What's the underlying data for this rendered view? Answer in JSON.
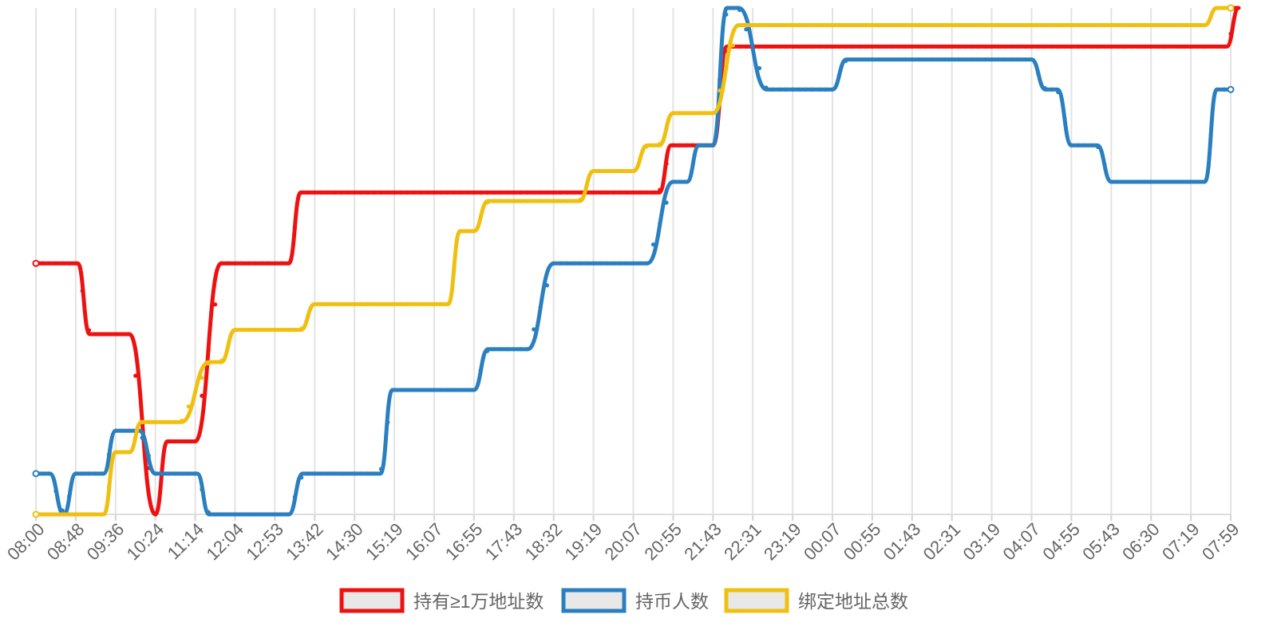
{
  "chart_data": {
    "type": "line",
    "title": "",
    "xlabel": "",
    "ylabel": "",
    "grid": "vertical",
    "legend_position": "bottom",
    "categories": [
      "08:00",
      "08:48",
      "09:36",
      "10:24",
      "11:14",
      "12:04",
      "12:53",
      "13:42",
      "14:30",
      "15:19",
      "16:07",
      "16:55",
      "17:43",
      "18:32",
      "19:19",
      "20:07",
      "20:55",
      "21:43",
      "22:31",
      "23:19",
      "00:07",
      "00:55",
      "01:43",
      "02:31",
      "03:19",
      "04:07",
      "04:55",
      "05:43",
      "06:30",
      "07:19",
      "07:59"
    ],
    "y_tick_labels_shown": false,
    "series": [
      {
        "name": "持有≥1万地址数",
        "color": "#ee1111",
        "points": [
          [
            0,
            5.85
          ],
          [
            1.05,
            5.85
          ],
          [
            1.35,
            4.2
          ],
          [
            2.35,
            4.2
          ],
          [
            3.0,
            0
          ],
          [
            3.3,
            1.7
          ],
          [
            4.0,
            1.7
          ],
          [
            4.65,
            5.85
          ],
          [
            6.35,
            5.85
          ],
          [
            6.65,
            7.5
          ],
          [
            15.65,
            7.5
          ],
          [
            15.95,
            8.6
          ],
          [
            17.0,
            8.6
          ],
          [
            17.35,
            10.9
          ],
          [
            29.9,
            10.9
          ],
          [
            30.2,
            11.8
          ],
          [
            30.0,
            11.8
          ]
        ]
      },
      {
        "name": "持币人数",
        "color": "#2a7fc0",
        "points": [
          [
            0,
            0.95
          ],
          [
            0.35,
            0.95
          ],
          [
            0.7,
            0
          ],
          [
            1.0,
            0.95
          ],
          [
            1.7,
            0.95
          ],
          [
            2.0,
            1.95
          ],
          [
            2.6,
            1.95
          ],
          [
            3.0,
            0.95
          ],
          [
            4.05,
            0.95
          ],
          [
            4.35,
            0
          ],
          [
            6.35,
            0
          ],
          [
            6.7,
            0.95
          ],
          [
            8.65,
            0.95
          ],
          [
            8.95,
            2.9
          ],
          [
            11.0,
            2.9
          ],
          [
            11.35,
            3.85
          ],
          [
            12.35,
            3.85
          ],
          [
            13.0,
            5.85
          ],
          [
            15.35,
            5.85
          ],
          [
            16.0,
            7.75
          ],
          [
            16.35,
            7.75
          ],
          [
            16.65,
            8.6
          ],
          [
            17.0,
            8.6
          ],
          [
            17.35,
            11.8
          ],
          [
            17.65,
            11.8
          ],
          [
            18.35,
            9.9
          ],
          [
            20.0,
            9.9
          ],
          [
            20.35,
            10.6
          ],
          [
            25.0,
            10.6
          ],
          [
            25.35,
            9.9
          ],
          [
            25.65,
            9.9
          ],
          [
            26.0,
            8.6
          ],
          [
            26.65,
            8.6
          ],
          [
            27.0,
            7.75
          ],
          [
            29.35,
            7.75
          ],
          [
            29.65,
            9.9
          ],
          [
            30.0,
            9.9
          ]
        ]
      },
      {
        "name": "绑定地址总数",
        "color": "#f0c010",
        "points": [
          [
            0,
            0
          ],
          [
            1.7,
            0
          ],
          [
            2.0,
            1.45
          ],
          [
            2.35,
            1.45
          ],
          [
            2.65,
            2.15
          ],
          [
            3.65,
            2.15
          ],
          [
            4.35,
            3.55
          ],
          [
            4.65,
            3.55
          ],
          [
            5.0,
            4.3
          ],
          [
            6.65,
            4.3
          ],
          [
            7.0,
            4.9
          ],
          [
            10.35,
            4.9
          ],
          [
            10.65,
            6.6
          ],
          [
            11.0,
            6.6
          ],
          [
            11.35,
            7.3
          ],
          [
            13.65,
            7.3
          ],
          [
            14.0,
            8.0
          ],
          [
            15.0,
            8.0
          ],
          [
            15.35,
            8.6
          ],
          [
            15.65,
            8.6
          ],
          [
            16.0,
            9.35
          ],
          [
            17.0,
            9.35
          ],
          [
            17.65,
            11.4
          ],
          [
            29.35,
            11.4
          ],
          [
            29.65,
            11.8
          ],
          [
            30.0,
            11.8
          ]
        ]
      }
    ],
    "ylim": [
      0,
      11.8
    ]
  }
}
